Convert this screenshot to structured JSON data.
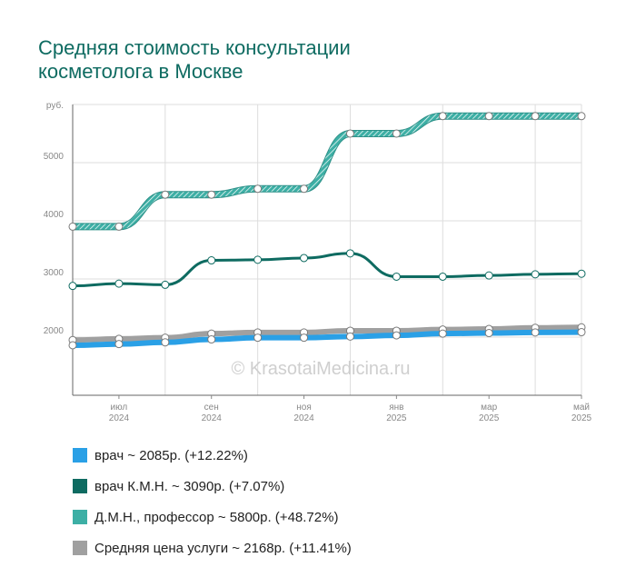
{
  "title_line1": "Средняя стоимость консультации",
  "title_line2": "косметолога в Москве",
  "watermark": "© KrasotaiMedicina.ru",
  "colors": {
    "title": "#0e6b61",
    "grid": "#dddddd",
    "axis": "#666666"
  },
  "legend": [
    {
      "label": "врач ~ 2085р. (+12.22%)",
      "color": "#2aa0e6"
    },
    {
      "label": "врач К.М.Н. ~ 3090р. (+7.07%)",
      "color": "#0e6b61"
    },
    {
      "label": "Д.М.Н., профессор ~ 5800р. (+48.72%)",
      "color": "#3dafa5"
    },
    {
      "label": "Средняя цена услуги ~ 2168р. (+11.41%)",
      "color": "#a0a0a0"
    }
  ],
  "chart_data": {
    "type": "line",
    "ylabel": "руб.",
    "ylim": [
      1000,
      6000
    ],
    "yticks": [
      2000,
      3000,
      4000,
      5000
    ],
    "x_count": 12,
    "xticks": [
      {
        "index": 1,
        "month": "июл",
        "year": "2024"
      },
      {
        "index": 3,
        "month": "сен",
        "year": "2024"
      },
      {
        "index": 5,
        "month": "ноя",
        "year": "2024"
      },
      {
        "index": 7,
        "month": "янв",
        "year": "2025"
      },
      {
        "index": 9,
        "month": "мар",
        "year": "2025"
      },
      {
        "index": 11,
        "month": "май",
        "year": "2025"
      }
    ],
    "series": [
      {
        "name": "Д.М.Н., профессор",
        "color": "#3dafa5",
        "style": "striped",
        "values": [
          3900,
          3900,
          4450,
          4450,
          4550,
          4550,
          5500,
          5500,
          5800,
          5800,
          5800,
          5800
        ]
      },
      {
        "name": "врач К.М.Н.",
        "color": "#0e6b61",
        "style": "dark",
        "values": [
          2880,
          2920,
          2900,
          3320,
          3330,
          3360,
          3440,
          3040,
          3040,
          3060,
          3080,
          3090
        ]
      },
      {
        "name": "Средняя цена услуги",
        "color": "#a0a0a0",
        "style": "thick",
        "values": [
          1950,
          1970,
          1990,
          2060,
          2080,
          2080,
          2110,
          2110,
          2130,
          2140,
          2160,
          2168
        ]
      },
      {
        "name": "врач",
        "color": "#2aa0e6",
        "style": "thick",
        "values": [
          1860,
          1880,
          1910,
          1960,
          1990,
          1990,
          2010,
          2030,
          2060,
          2070,
          2080,
          2085
        ]
      }
    ]
  }
}
